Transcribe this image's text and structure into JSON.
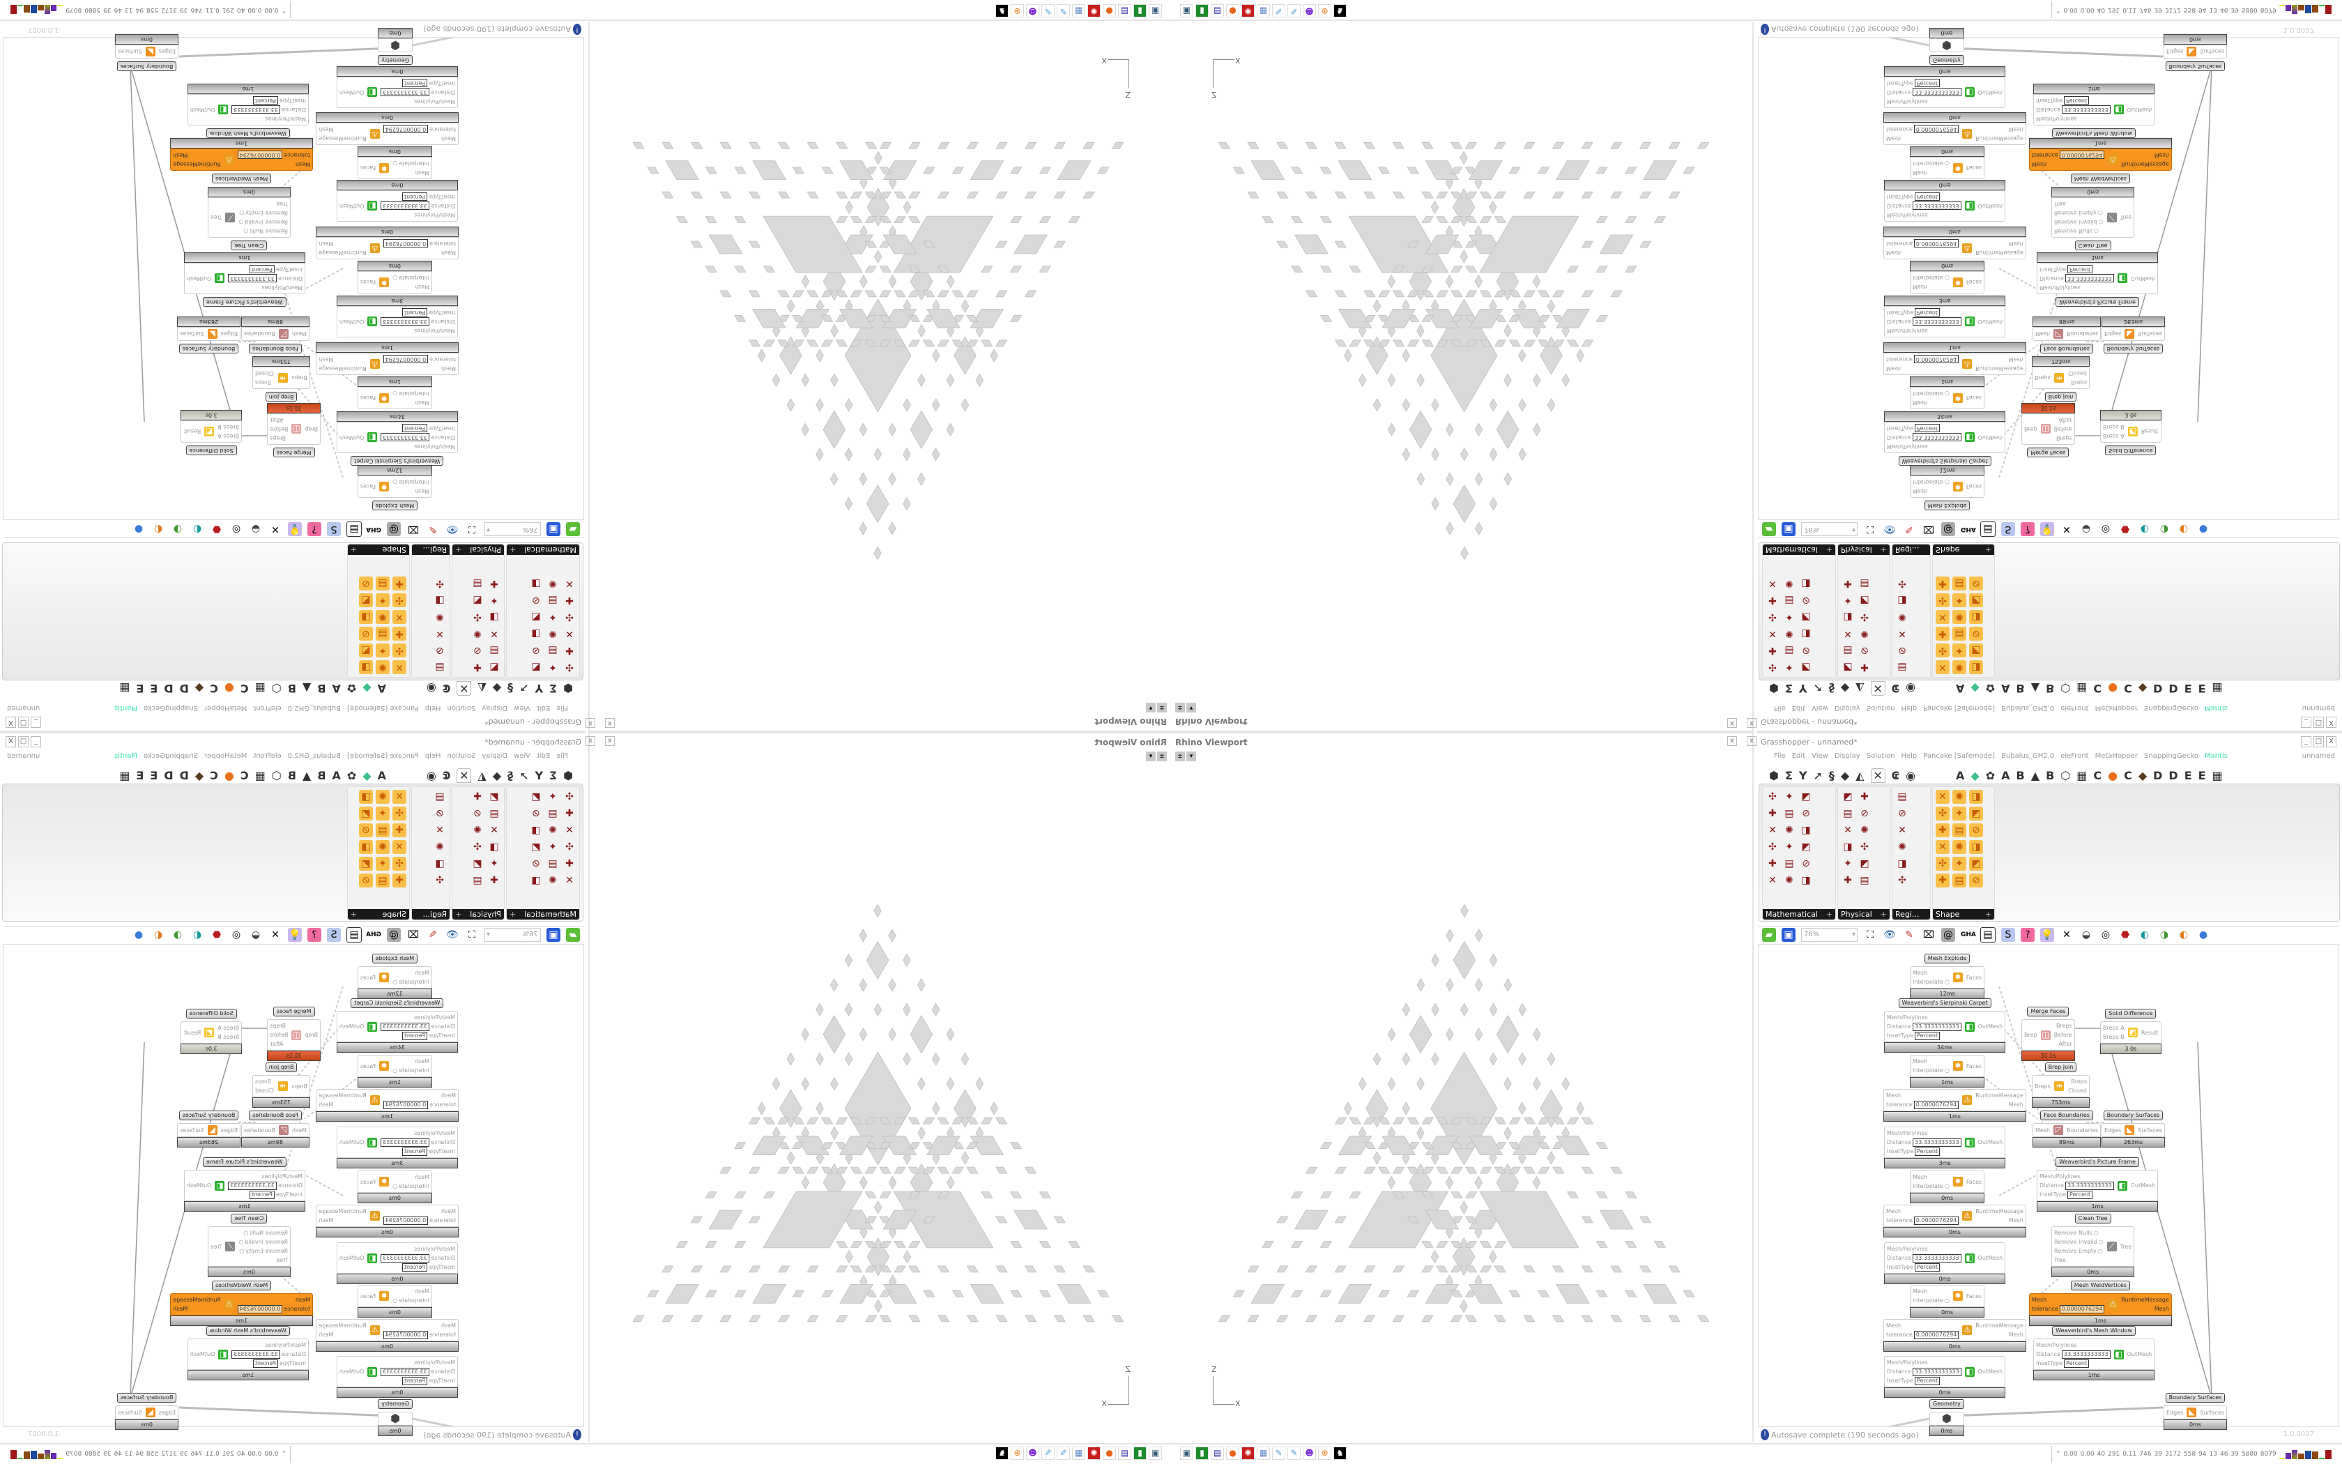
{
  "viewport": {
    "title": "Rhino Viewport",
    "close": "x",
    "axis_x": "X",
    "axis_z": "Z"
  },
  "grasshopper": {
    "title": "Grasshopper - unnamed*",
    "close": "x",
    "window_controls": [
      "_",
      "□",
      "X"
    ],
    "menu": [
      "File",
      "Edit",
      "View",
      "Display",
      "Solution",
      "Help",
      "Pancake [Safemode]",
      "Bubalus_GH2.0",
      "eleFront",
      "MetaHopper",
      "SnappingGecko",
      "Mantis"
    ],
    "document_name": "unnamed",
    "accent_mantis": "#3ee8a8",
    "ribbon_tabs": [
      "⬢",
      "Σ",
      "Y",
      "➚",
      "§",
      "◆",
      "◭",
      "✕",
      "₢",
      "◉"
    ],
    "ribbon_plugins": [
      "A",
      "◆",
      "✿",
      "A",
      "B",
      "▲",
      "B",
      "⬡",
      "▦",
      "C",
      "●",
      "C",
      "◆",
      "D",
      "D",
      "E",
      "E",
      "▦"
    ],
    "palette_groups": [
      "Mathematical",
      "Physical",
      "Regi...",
      "Shape"
    ],
    "zoom": "76%",
    "status": "Autosave complete (190 seconds ago)",
    "version": "1.0.0007"
  },
  "canvas": {
    "nodes": [
      {
        "label": "Mesh Explode",
        "inputs": [
          "Mesh",
          "Interpolate"
        ],
        "outputs": [
          "Faces"
        ],
        "time": "12ms"
      },
      {
        "label": "Weaverbird's Sierpinski Carpet",
        "inputs": [
          "Mesh/Polylines",
          "Distance",
          "InsetType"
        ],
        "values": {
          "Distance": "33.3333333333",
          "InsetType": "Percent"
        },
        "outputs": [
          "OutMesh"
        ],
        "time": "34ms"
      },
      {
        "inputs": [
          "Mesh",
          "Interpolate"
        ],
        "outputs": [
          "Faces"
        ],
        "time": "1ms"
      },
      {
        "inputs": [
          "Mesh",
          "tolerance"
        ],
        "values": {
          "tolerance": "0.0000076294"
        },
        "outputs": [
          "RuntimeMessage",
          "Mesh"
        ],
        "time": "1ms"
      },
      {
        "inputs": [
          "Mesh/Polylines",
          "Distance",
          "InsetType"
        ],
        "values": {
          "Distance": "33.3333333333",
          "InsetType": "Percent"
        },
        "outputs": [
          "OutMesh"
        ],
        "time": "3ms"
      },
      {
        "inputs": [
          "Mesh",
          "Interpolate"
        ],
        "outputs": [
          "Faces"
        ],
        "time": "0ms"
      },
      {
        "inputs": [
          "Mesh",
          "tolerance"
        ],
        "values": {
          "tolerance": "0.0000076294"
        },
        "outputs": [
          "RuntimeMessage",
          "Mesh"
        ],
        "time": "0ms"
      },
      {
        "inputs": [
          "Mesh/Polylines",
          "Distance",
          "InsetType"
        ],
        "values": {
          "Distance": "33.3333333333",
          "InsetType": "Percent"
        },
        "outputs": [
          "OutMesh"
        ],
        "time": "0ms"
      },
      {
        "inputs": [
          "Mesh",
          "Interpolate"
        ],
        "outputs": [
          "Faces"
        ],
        "time": "0ms"
      },
      {
        "inputs": [
          "Mesh",
          "tolerance"
        ],
        "values": {
          "tolerance": "0.0000076294"
        },
        "outputs": [
          "RuntimeMessage",
          "Mesh"
        ],
        "time": "0ms"
      },
      {
        "inputs": [
          "Mesh/Polylines",
          "Distance",
          "InsetType"
        ],
        "values": {
          "Distance": "33.3333333333",
          "InsetType": "Percent"
        },
        "outputs": [
          "OutMesh"
        ],
        "time": "0ms"
      },
      {
        "label": "Geometry",
        "inputs": [],
        "outputs": [],
        "time": "0ms"
      },
      {
        "label": "Merge Faces",
        "inputs": [
          "Brep"
        ],
        "outputs": [
          "Breps",
          "Before",
          "After"
        ],
        "time": "31.1s",
        "state": "slow"
      },
      {
        "label": "Solid Difference",
        "inputs": [
          "Breps A",
          "Breps B"
        ],
        "outputs": [
          "Result"
        ],
        "time": "3.0s"
      },
      {
        "label": "Brep Join",
        "inputs": [
          "Breps"
        ],
        "outputs": [
          "Breps",
          "Closed"
        ],
        "time": "753ms"
      },
      {
        "label": "Face Boundaries",
        "inputs": [
          "Mesh"
        ],
        "outputs": [
          "Boundaries"
        ],
        "time": "89ms"
      },
      {
        "label": "Boundary Surfaces",
        "inputs": [
          "Edges"
        ],
        "outputs": [
          "Surfaces"
        ],
        "time": "263ms"
      },
      {
        "label": "Weaverbird's Picture Frame",
        "inputs": [
          "Mesh/Polylines",
          "Distance",
          "InsetType"
        ],
        "values": {
          "Distance": "33.3333333333",
          "InsetType": "Percent"
        },
        "outputs": [
          "OutMesh"
        ],
        "time": "1ms"
      },
      {
        "label": "Clean Tree",
        "inputs": [
          "Remove Nulls",
          "Remove Invalid",
          "Remove Empty",
          "Tree"
        ],
        "outputs": [
          "Tree"
        ],
        "time": "0ms"
      },
      {
        "label": "Mesh WeldVertices",
        "inputs": [
          "Mesh",
          "tolerance"
        ],
        "values": {
          "tolerance": "0.0000076294"
        },
        "outputs": [
          "RuntimeMessage",
          "Mesh"
        ],
        "time": "1ms",
        "state": "selected"
      },
      {
        "label": "Weaverbird's Mesh Window",
        "inputs": [
          "Mesh/Polylines",
          "Distance",
          "InsetType"
        ],
        "values": {
          "Distance": "33.3333333333",
          "InsetType": "Percent"
        },
        "outputs": [
          "OutMesh"
        ],
        "time": "1ms"
      },
      {
        "label": "Boundary Surfaces",
        "inputs": [
          "Edges"
        ],
        "outputs": [
          "Surfaces"
        ],
        "time": "0ms"
      }
    ],
    "colors": {
      "selected": "#f7941d",
      "slow": "#d9541e",
      "fractal_fill": "#d9d9d9"
    }
  },
  "taskbar": {
    "stats": [
      "0.00",
      "0.00",
      "40",
      "291",
      "0.11",
      "746",
      "39",
      "3172",
      "558",
      "94",
      "13",
      "46",
      "39",
      "5880",
      "8079"
    ]
  }
}
